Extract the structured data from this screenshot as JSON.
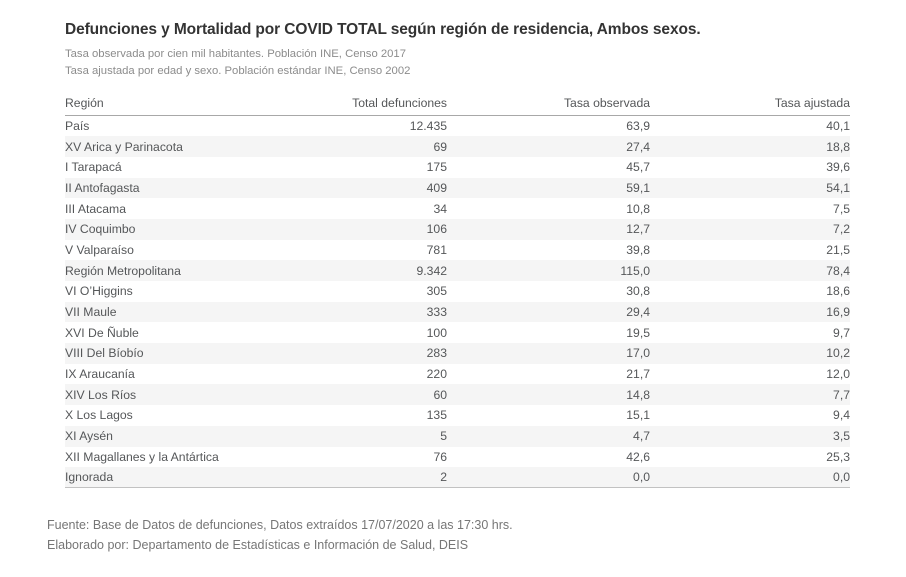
{
  "report": {
    "title": "Defunciones y Mortalidad por COVID TOTAL según región de residencia, Ambos sexos.",
    "subtitle_line1": "Tasa observada por cien mil habitantes. Población INE, Censo 2017",
    "subtitle_line2": "Tasa ajustada por edad y sexo. Población estándar INE, Censo 2002",
    "footer_line1": "Fuente: Base de Datos de defunciones, Datos extraídos 17/07/2020 a las 17:30 hrs.",
    "footer_line2": "Elaborado por: Departamento de Estadísticas e Información de Salud, DEIS"
  },
  "chart_data": {
    "type": "table",
    "title": "Defunciones y Mortalidad por COVID TOTAL según región de residencia, Ambos sexos.",
    "columns": [
      "Región",
      "Total defunciones",
      "Tasa observada",
      "Tasa ajustada"
    ],
    "rows": [
      [
        "País",
        "12.435",
        "63,9",
        "40,1"
      ],
      [
        "XV Arica y Parinacota",
        "69",
        "27,4",
        "18,8"
      ],
      [
        "I Tarapacá",
        "175",
        "45,7",
        "39,6"
      ],
      [
        "II Antofagasta",
        "409",
        "59,1",
        "54,1"
      ],
      [
        "III Atacama",
        "34",
        "10,8",
        "7,5"
      ],
      [
        "IV Coquimbo",
        "106",
        "12,7",
        "7,2"
      ],
      [
        "V Valparaíso",
        "781",
        "39,8",
        "21,5"
      ],
      [
        "Región Metropolitana",
        "9.342",
        "115,0",
        "78,4"
      ],
      [
        "VI O’Higgins",
        "305",
        "30,8",
        "18,6"
      ],
      [
        "VII Maule",
        "333",
        "29,4",
        "16,9"
      ],
      [
        "XVI De Ñuble",
        "100",
        "19,5",
        "9,7"
      ],
      [
        "VIII Del Bíobío",
        "283",
        "17,0",
        "10,2"
      ],
      [
        "IX Araucanía",
        "220",
        "21,7",
        "12,0"
      ],
      [
        "XIV Los Ríos",
        "60",
        "14,8",
        "7,7"
      ],
      [
        "X Los Lagos",
        "135",
        "15,1",
        "9,4"
      ],
      [
        "XI Aysén",
        "5",
        "4,7",
        "3,5"
      ],
      [
        "XII Magallanes y la Antártica",
        "76",
        "42,6",
        "25,3"
      ],
      [
        "Ignorada",
        "2",
        "0,0",
        "0,0"
      ]
    ],
    "layout": {
      "stripe_rows": true,
      "stripe_color": "#f5f5f5",
      "first_column_align": "left",
      "numeric_columns_align": "right"
    },
    "colors": {
      "title_text": "#333333",
      "subtitle_text": "#8c8c8c",
      "cell_text": "#555759",
      "header_border": "#a8a8a8",
      "table_bottom_border": "#c2c2c2",
      "footer_text": "#767676",
      "background": "#ffffff"
    }
  }
}
